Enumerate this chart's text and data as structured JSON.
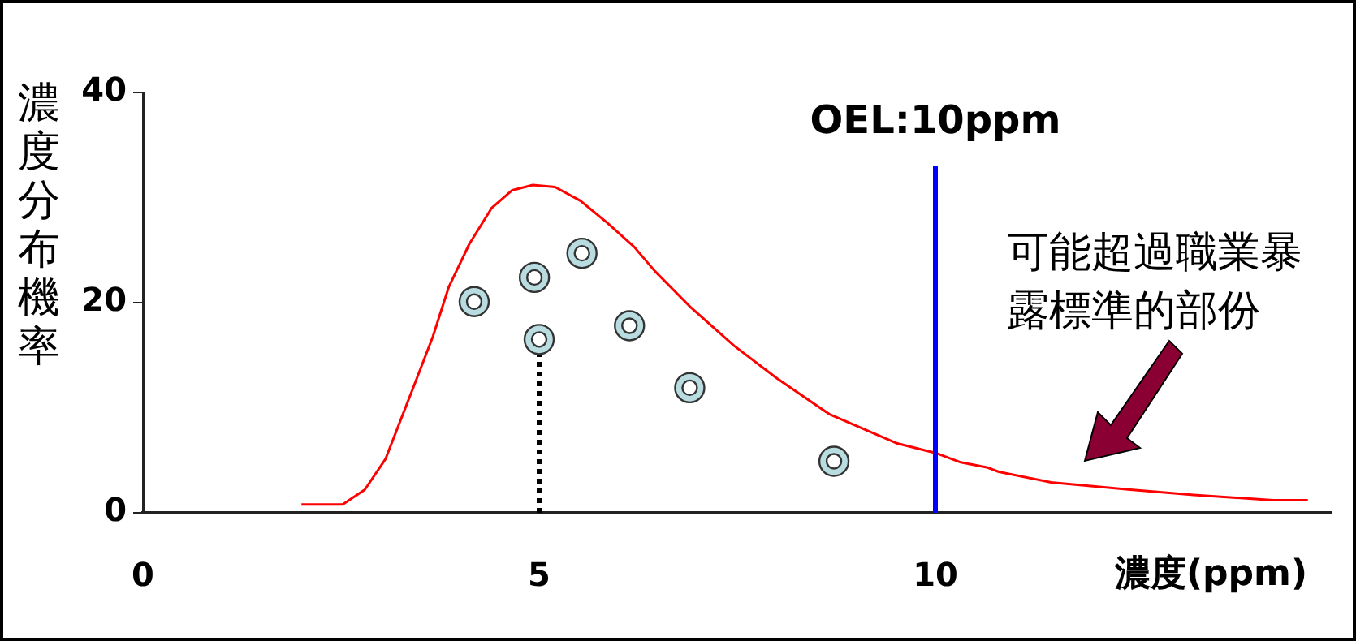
{
  "chart_data": {
    "type": "line",
    "xlabel": "濃度(ppm)",
    "ylabel": "濃度分布機率",
    "xlim": [
      0,
      15
    ],
    "xticks": [
      0,
      5,
      10
    ],
    "ylim": [
      0,
      40
    ],
    "yticks": [
      0,
      20,
      40
    ],
    "grid": false,
    "legend": false,
    "series": [
      {
        "type": "line",
        "color": "#ff0000",
        "marker": "none",
        "x": [
          2.0,
          2.52,
          2.8,
          3.06,
          3.4,
          3.66,
          3.86,
          4.12,
          4.4,
          4.66,
          4.92,
          5.2,
          5.52,
          5.86,
          6.2,
          6.46,
          6.92,
          7.46,
          8.0,
          8.66,
          9.52,
          10.0,
          10.32,
          10.66,
          10.8,
          11.46,
          12.46,
          13.26,
          14.26,
          14.7
        ],
        "values": [
          0.8,
          0.8,
          2.2,
          5.1,
          11.7,
          16.8,
          21.5,
          25.6,
          29,
          30.7,
          31.2,
          31,
          29.7,
          27.6,
          25.3,
          23,
          19.5,
          15.9,
          12.8,
          9.4,
          6.6,
          5.7,
          4.8,
          4.3,
          3.9,
          2.9,
          2.2,
          1.7,
          1.2,
          1.2
        ]
      },
      {
        "type": "scatter",
        "color": "#b8dce0",
        "marker": "circle",
        "x": [
          4.18,
          4.94,
          5.54,
          5.0,
          6.14,
          6.9,
          8.72
        ],
        "values": [
          20.1,
          22.4,
          24.7,
          16.5,
          17.8,
          11.9,
          4.9
        ]
      },
      {
        "type": "line",
        "color": "#000000",
        "line_style": "dotted",
        "x": [
          5,
          5
        ],
        "values": [
          0,
          16.5
        ]
      }
    ],
    "ref_lines": [
      {
        "axis": "x",
        "value": 10,
        "label": "OEL:10ppm",
        "color": "#0000ff"
      }
    ],
    "annotations": [
      "可能超過職業暴露標準的部份"
    ]
  }
}
